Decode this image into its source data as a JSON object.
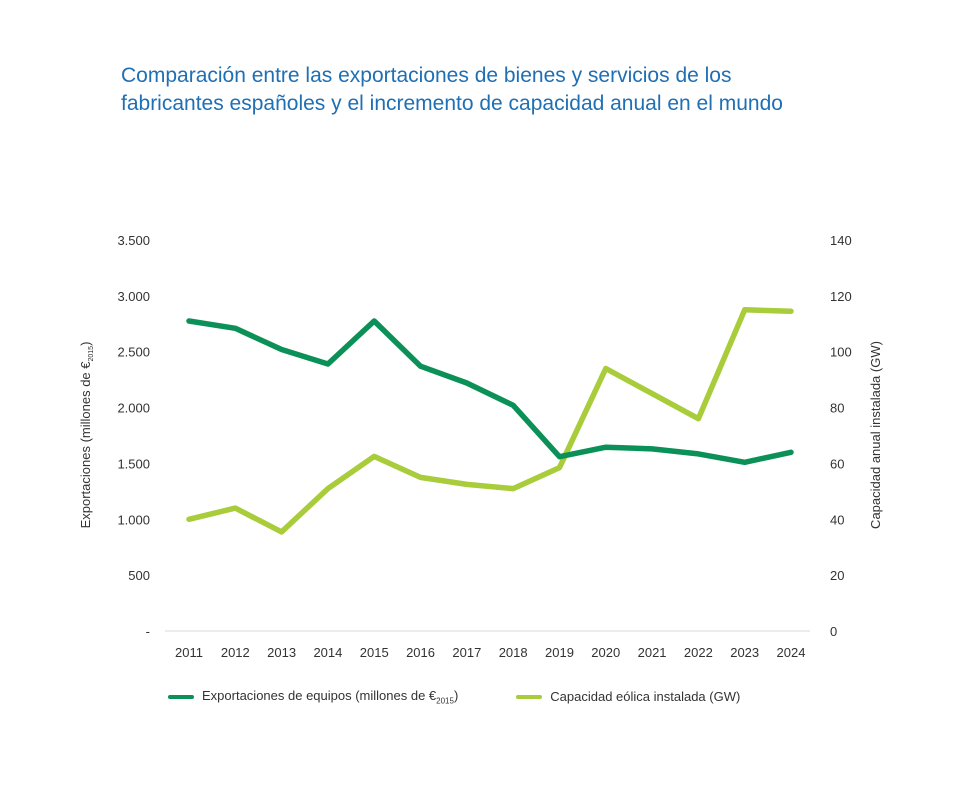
{
  "chart_data": {
    "type": "line",
    "title": "Comparación entre las exportaciones de bienes y servicios de los fabricantes españoles y el incremento de capacidad anual en el mundo",
    "title_lines": [
      "Comparación entre las exportaciones de bienes y servicios de los",
      "fabricantes españoles y el incremento de capacidad anual en el mundo"
    ],
    "x": [
      "2011",
      "2012",
      "2013",
      "2014",
      "2015",
      "2016",
      "2017",
      "2018",
      "2019",
      "2020",
      "2021",
      "2022",
      "2023",
      "2024"
    ],
    "ylabel_left": {
      "main": "Exportaciones (millones de €",
      "sub": "2015",
      "end": ")"
    },
    "ylabel_right": "Capacidad  anual  instalada (GW)",
    "y_left": {
      "range": [
        0,
        3500
      ],
      "ticks": [
        "-",
        "500",
        "1.000",
        "1.500",
        "2.000",
        "2.500",
        "3.000",
        "3.500"
      ],
      "tick_values": [
        0,
        500,
        1000,
        1500,
        2000,
        2500,
        3000,
        3500
      ]
    },
    "y_right": {
      "range": [
        0,
        140
      ],
      "ticks": [
        "0",
        "20",
        "40",
        "60",
        "80",
        "100",
        "120",
        "140"
      ],
      "tick_values": [
        0,
        20,
        40,
        60,
        80,
        100,
        120,
        140
      ]
    },
    "grid": false,
    "legend_position": "bottom",
    "series": [
      {
        "name": "Exportaciones de equipos (millones de €2015)",
        "legend_main": "Exportaciones de equipos (millones de €",
        "legend_sub": "2015",
        "legend_end": ")",
        "axis": "left",
        "color": "#0b9158",
        "values": [
          2775,
          2710,
          2520,
          2390,
          2775,
          2370,
          2220,
          2020,
          1560,
          1645,
          1630,
          1585,
          1510,
          1600
        ]
      },
      {
        "name": "Capacidad eólica instalada (GW)",
        "legend_main": "Capacidad eólica instalada (GW)",
        "axis": "right",
        "color": "#a8cc3a",
        "values": [
          40,
          44,
          35.5,
          51,
          62.5,
          55,
          52.5,
          51,
          58.5,
          94,
          85,
          76,
          115,
          114.5
        ]
      }
    ]
  }
}
